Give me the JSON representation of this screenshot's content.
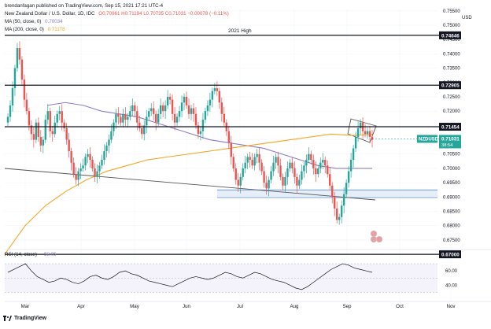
{
  "header": {
    "publisher_line": "brendanfagan published on TradingView.com, Sep 15, 2021 17:21 UTC-4",
    "symbol_line": "New Zealand Dollar / U.S. Dollar, 1D, IDC",
    "ohlc": "O0.70961 H0.71194 L0.70735 C0.71031 −0.00078 (−0.11%)",
    "ma50_label": "MA (50, close, 0)",
    "ma50_value": "0.70034",
    "ma200_label": "MA (200, close, 0)",
    "ma200_value": "0.71178"
  },
  "footer": {
    "brand": "TradingView",
    "logo_icon": "tradingview-logo-icon"
  },
  "chart_data": {
    "type": "candlestick",
    "symbol": "NZDUSD",
    "currency": "USD",
    "title": "New Zealand Dollar / U.S. Dollar, 1D, IDC",
    "x_labels": [
      "Mar",
      "Apr",
      "May",
      "Jun",
      "Jul",
      "Aug",
      "Sep",
      "Oct",
      "Nov"
    ],
    "y_ticks": [
      0.675,
      0.68,
      0.685,
      0.69,
      0.695,
      0.7,
      0.705,
      0.71,
      0.715,
      0.72,
      0.725,
      0.73,
      0.735,
      0.74,
      0.745,
      0.75,
      0.755
    ],
    "ylim": [
      0.6725,
      0.7555
    ],
    "y_axis_labels": [
      "0.75500",
      "0.75000",
      "0.74500",
      "0.74000",
      "0.73500",
      "0.73000",
      "0.72500",
      "0.72000",
      "0.71500",
      "0.71000",
      "0.70500",
      "0.70000",
      "0.69500",
      "0.69000",
      "0.68500",
      "0.68000",
      "0.67500"
    ],
    "close_path": [
      0.718,
      0.722,
      0.728,
      0.735,
      0.742,
      0.738,
      0.731,
      0.724,
      0.72,
      0.715,
      0.712,
      0.71,
      0.716,
      0.711,
      0.708,
      0.71,
      0.717,
      0.72,
      0.713,
      0.712,
      0.716,
      0.719,
      0.72,
      0.716,
      0.714,
      0.71,
      0.706,
      0.702,
      0.698,
      0.696,
      0.699,
      0.7,
      0.701,
      0.704,
      0.705,
      0.703,
      0.7,
      0.697,
      0.699,
      0.701,
      0.703,
      0.706,
      0.708,
      0.71,
      0.713,
      0.716,
      0.719,
      0.718,
      0.716,
      0.719,
      0.717,
      0.718,
      0.72,
      0.722,
      0.72,
      0.716,
      0.714,
      0.712,
      0.715,
      0.718,
      0.72,
      0.721,
      0.719,
      0.716,
      0.719,
      0.722,
      0.72,
      0.722,
      0.725,
      0.724,
      0.719,
      0.716,
      0.718,
      0.72,
      0.723,
      0.725,
      0.722,
      0.719,
      0.721,
      0.719,
      0.715,
      0.712,
      0.713,
      0.717,
      0.72,
      0.722,
      0.724,
      0.727,
      0.728,
      0.727,
      0.723,
      0.719,
      0.716,
      0.713,
      0.709,
      0.704,
      0.7,
      0.696,
      0.694,
      0.697,
      0.7,
      0.702,
      0.704,
      0.703,
      0.701,
      0.704,
      0.705,
      0.702,
      0.699,
      0.695,
      0.693,
      0.696,
      0.699,
      0.702,
      0.704,
      0.701,
      0.697,
      0.694,
      0.697,
      0.7,
      0.702,
      0.7,
      0.697,
      0.694,
      0.696,
      0.699,
      0.701,
      0.703,
      0.705,
      0.703,
      0.7,
      0.698,
      0.7,
      0.702,
      0.703,
      0.701,
      0.698,
      0.694,
      0.69,
      0.686,
      0.682,
      0.683,
      0.687,
      0.691,
      0.695,
      0.699,
      0.703,
      0.707,
      0.711,
      0.714,
      0.716,
      0.713,
      0.712,
      0.713,
      0.711,
      0.71
    ],
    "moving_averages": [
      {
        "name": "MA (50, close, 0)",
        "value": 0.70034,
        "color": "#8e7cc3",
        "path": [
          0.722,
          0.723,
          0.722,
          0.72,
          0.719,
          0.718,
          0.716,
          0.714,
          0.712,
          0.71,
          0.709,
          0.708,
          0.707,
          0.705,
          0.703,
          0.701,
          0.7,
          0.7,
          0.7
        ]
      },
      {
        "name": "MA (200, close, 0)",
        "value": 0.71178,
        "color": "#f5a623",
        "path": [
          0.67,
          0.68,
          0.687,
          0.692,
          0.696,
          0.699,
          0.701,
          0.703,
          0.704,
          0.705,
          0.706,
          0.707,
          0.708,
          0.709,
          0.71,
          0.711,
          0.712,
          0.7115,
          0.7118
        ]
      }
    ],
    "horizontal_levels": [
      {
        "label": "0.74646",
        "value": 0.74646
      },
      {
        "label": "0.72905",
        "value": 0.72905
      },
      {
        "label": "0.71454",
        "value": 0.71454
      },
      {
        "label": "0.67000",
        "value": 0.67
      }
    ],
    "last_price": {
      "symbol_tag": "NZDUSD",
      "label": "0.71031",
      "countdown": "38:54",
      "value": 0.71031,
      "color": "#26a69a"
    },
    "annotations": [
      {
        "text": "2021 High"
      }
    ],
    "colors": {
      "up": "#26a69a",
      "down": "#ef5350",
      "level": "#131722",
      "zone": "#d6e4f5"
    },
    "rsi": {
      "label": "RSI (14, close)",
      "value_label": "58.05",
      "value": 58.05,
      "ticks": [
        "60.00",
        "40.00"
      ],
      "path": [
        58,
        62,
        66,
        70,
        60,
        52,
        48,
        44,
        46,
        50,
        48,
        44,
        42,
        46,
        52,
        54,
        50,
        48,
        52,
        58,
        60,
        56,
        54,
        50,
        46,
        44,
        42,
        40,
        38,
        42,
        46,
        50,
        52,
        50,
        48,
        50,
        54,
        58,
        56,
        52,
        50,
        54,
        58,
        56,
        52,
        48,
        46,
        44,
        40,
        36,
        34,
        38,
        44,
        50,
        56,
        62,
        66,
        70,
        68,
        64,
        62,
        60,
        58
      ]
    }
  }
}
